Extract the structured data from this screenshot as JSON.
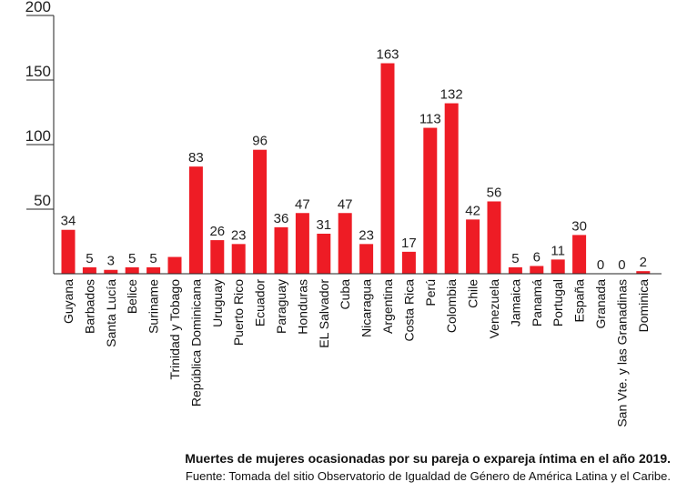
{
  "chart_data": {
    "type": "bar",
    "categories": [
      "Guyana",
      "Barbados",
      "Santa Lucía",
      "Belice",
      "Suriname",
      "Trinidad y Tobago",
      "República Dominicana",
      "Uruguay",
      "Puerto Rico",
      "Ecuador",
      "Paraguay",
      "Honduras",
      "EL Salvador",
      "Cuba",
      "Nicaragua",
      "Argentina",
      "Costa Rica",
      "Perú",
      "Colombia",
      "Chile",
      "Venezuela",
      "Jamaica",
      "Panamá",
      "Portugal",
      "España",
      "Granada",
      "San Vte. y las Granadinas",
      "Dominica"
    ],
    "values": [
      34,
      5,
      3,
      5,
      5,
      13,
      83,
      26,
      23,
      96,
      36,
      47,
      31,
      47,
      23,
      163,
      17,
      113,
      132,
      42,
      56,
      5,
      6,
      11,
      30,
      0,
      0,
      2
    ],
    "data_labels": [
      "34",
      "5",
      "3",
      "5",
      "5",
      "",
      "83",
      "26",
      "23",
      "96",
      "36",
      "47",
      "31",
      "47",
      "23",
      "163",
      "17",
      "113",
      "132",
      "42",
      "56",
      "5",
      "6",
      "11",
      "30",
      "0",
      "0",
      "2"
    ],
    "y_ticks": [
      50,
      100,
      150,
      200
    ],
    "ylim": [
      0,
      200
    ],
    "grid": false,
    "bar_color": "#ee1c25",
    "title": "",
    "xlabel": "",
    "ylabel": ""
  },
  "caption": {
    "title": "Muertes de mujeres ocasionadas por su pareja o expareja íntima en el año 2019.",
    "source": "Fuente: Tomada del sitio Observatorio de Igualdad de Género de América Latina y el Caribe."
  }
}
